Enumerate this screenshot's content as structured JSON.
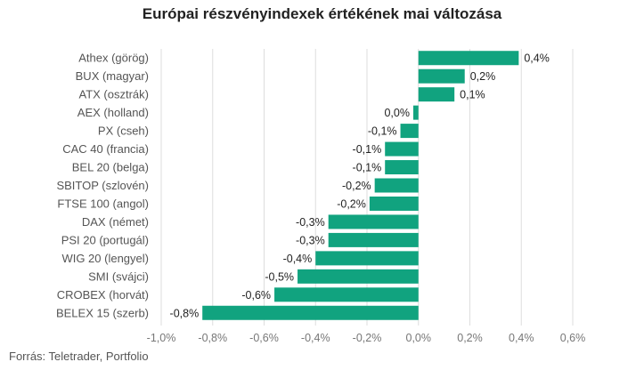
{
  "chart_data": {
    "type": "bar",
    "orientation": "horizontal",
    "title": "Európai részvényindexek értékének mai változása",
    "source": "Forrás: Teletrader, Portfolio",
    "categories": [
      "Athex (görög)",
      "BUX (magyar)",
      "ATX (osztrák)",
      "AEX (holland)",
      "PX (cseh)",
      "CAC 40 (francia)",
      "BEL 20 (belga)",
      "SBITOP (szlovén)",
      "FTSE 100 (angol)",
      "DAX (német)",
      "PSI 20 (portugál)",
      "WIG 20 (lengyel)",
      "SMI (svájci)",
      "CROBEX (horvát)",
      "BELEX 15 (szerb)"
    ],
    "values": [
      0.39,
      0.18,
      0.14,
      -0.02,
      -0.07,
      -0.13,
      -0.13,
      -0.17,
      -0.19,
      -0.35,
      -0.35,
      -0.4,
      -0.47,
      -0.56,
      -0.84
    ],
    "value_labels": [
      "0,4%",
      "0,2%",
      "0,1%",
      "0,0%",
      "-0,1%",
      "-0,1%",
      "-0,1%",
      "-0,2%",
      "-0,2%",
      "-0,3%",
      "-0,3%",
      "-0,4%",
      "-0,5%",
      "-0,6%",
      "-0,8%"
    ],
    "xlim": [
      -1.0,
      0.6
    ],
    "xticks": [
      -1.0,
      -0.8,
      -0.6,
      -0.4,
      -0.2,
      0.0,
      0.2,
      0.4,
      0.6
    ],
    "xtick_labels": [
      "-1,0%",
      "-0,8%",
      "-0,6%",
      "-0,4%",
      "-0,2%",
      "0,0%",
      "0,2%",
      "0,4%",
      "0,6%"
    ],
    "grid": true,
    "bar_color": "#11a37f",
    "grid_color": "#dddddd",
    "legend": "none"
  }
}
